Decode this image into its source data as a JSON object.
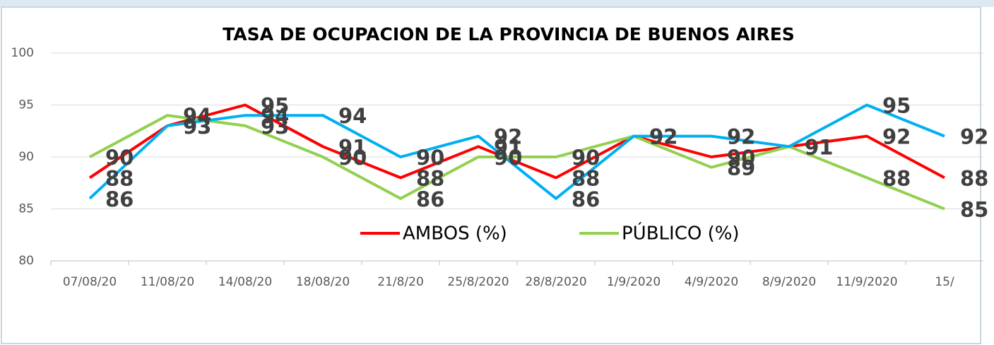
{
  "chart_data": {
    "type": "line",
    "title": "TASA DE OCUPACION DE LA PROVINCIA DE BUENOS AIRES",
    "categories": [
      "07/08/20",
      "11/08/20",
      "14/08/20",
      "18/08/20",
      "21/8/20",
      "25/8/2020",
      "28/8/2020",
      "1/9/2020",
      "4/9/2020",
      "8/9/2020",
      "11/9/2020",
      "15/"
    ],
    "series": [
      {
        "name": "AMBOS (%)",
        "color": "#ff0000",
        "values": [
          88,
          93,
          95,
          91,
          88,
          91,
          88,
          92,
          90,
          91,
          92,
          88
        ]
      },
      {
        "name": "PÚBLICO (%)",
        "color": "#92d050",
        "values": [
          90,
          94,
          93,
          90,
          86,
          90,
          90,
          92,
          89,
          91,
          88,
          85
        ]
      },
      {
        "color": "#00b0f0",
        "values": [
          86,
          93,
          94,
          94,
          90,
          92,
          86,
          92,
          92,
          91,
          95,
          92
        ]
      }
    ],
    "ylim": [
      80,
      100
    ],
    "yticks": [
      80,
      85,
      90,
      95,
      100
    ],
    "grid": true
  }
}
